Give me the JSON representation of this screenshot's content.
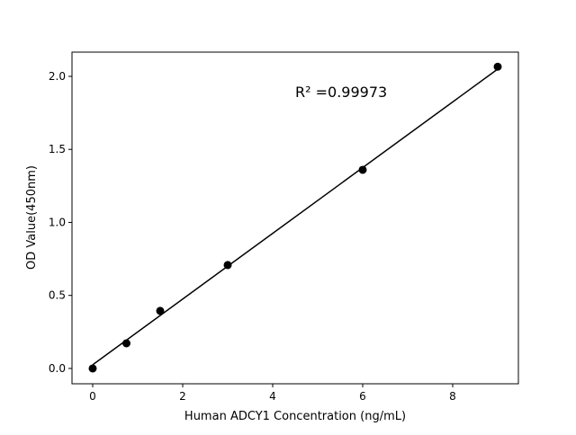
{
  "chart_data": {
    "type": "scatter",
    "title": "",
    "xlabel": "Human ADCY1 Concentration (ng/mL)",
    "ylabel": "OD Value(450nm)",
    "xlim": [
      -0.46,
      9.46
    ],
    "ylim": [
      -0.105,
      2.166
    ],
    "xticks": [
      0,
      2,
      4,
      6,
      8
    ],
    "xtick_labels": [
      "0",
      "2",
      "4",
      "6",
      "8"
    ],
    "yticks": [
      0.0,
      0.5,
      1.0,
      1.5,
      2.0
    ],
    "ytick_labels": [
      "0.0",
      "0.5",
      "1.0",
      "1.5",
      "2.0"
    ],
    "grid": false,
    "points": {
      "x": [
        0,
        0.75,
        1.5,
        3,
        6,
        9
      ],
      "y": [
        0.0,
        0.172,
        0.394,
        0.708,
        1.36,
        2.066
      ],
      "color": "#000000"
    },
    "fit_line": {
      "x": [
        0,
        9
      ],
      "y": [
        0.025,
        2.05
      ],
      "color": "#000000"
    },
    "annotation": "R² =0.99973"
  }
}
